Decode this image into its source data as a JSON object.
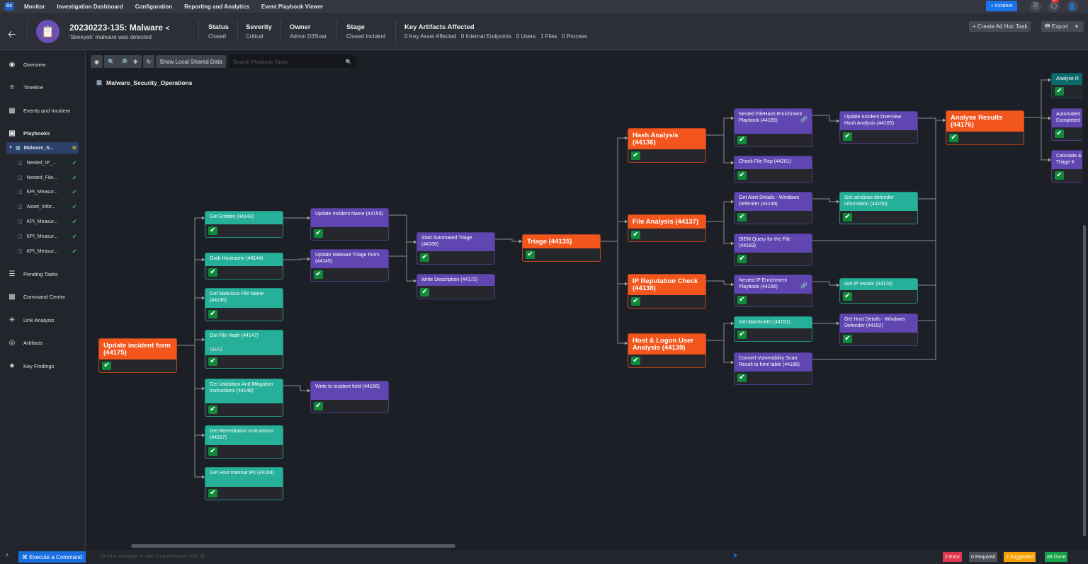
{
  "topnav": {
    "logo": "D3",
    "items": [
      "Monitor",
      "Investigation Dashboard",
      "Configuration",
      "Reporting and Analytics",
      "Event Playbook Viewer"
    ],
    "incident_button": "+ Incident",
    "notification_count": "27"
  },
  "header": {
    "title": "20230223-135: Malware",
    "subtitle": "'Skeeyah' malware was detected",
    "status": {
      "label": "Status",
      "value": "Closed"
    },
    "severity": {
      "label": "Severity",
      "value": "Critical"
    },
    "owner": {
      "label": "Owner",
      "value": "Admin D3Soar"
    },
    "stage": {
      "label": "Stage",
      "value": "Closed Incident"
    },
    "artifacts": {
      "label": "Key Artifacts Affected",
      "value": "0 Key Asset Affected   0 Internal Endpoints   0 Users   1 Files   0 Process"
    },
    "create_task": "+ Create Ad Hoc Task",
    "export": "Export"
  },
  "sidebar": {
    "items": [
      "Overview",
      "Timeline",
      "Events and Incident",
      "Playbooks",
      "Pending Tasks",
      "Command Centre",
      "Link Analysis",
      "Artifacts",
      "Key Findings"
    ],
    "playbooks": [
      "Malware_S...",
      "Nested_IP_...",
      "Nested_File...",
      "KPI_Measur...",
      "Asset_Infor...",
      "KPI_Measur...",
      "KPI_Measur...",
      "KPI_Measur..."
    ]
  },
  "toolbar": {
    "show_shared": "Show Local Shared Data",
    "search_placeholder": "Search Playbook Tasks"
  },
  "playbook_title": "Malware_Security_Operations",
  "nodes": [
    {
      "label": "Update incident form (44175)",
      "type": "orange"
    },
    {
      "label": "Get Entities (44143)",
      "type": "teal"
    },
    {
      "label": "Grab Hostname (44144)",
      "type": "teal"
    },
    {
      "label": "Get Malicious File Name (44146)",
      "type": "teal"
    },
    {
      "label": "Get File Hash (44147)",
      "type": "teal",
      "extra": "SHA1"
    },
    {
      "label": "Get Validation And Mitigation Instructions (44148)",
      "type": "teal"
    },
    {
      "label": "Get Remediation Instructions (44167)",
      "type": "teal"
    },
    {
      "label": "Get Host Internal IPs (44184)",
      "type": "teal"
    },
    {
      "label": "Update Incident Name (44153)",
      "type": "purple"
    },
    {
      "label": "Update Malware Triage Form (44145)",
      "type": "purple"
    },
    {
      "label": "Write to incident field (44166)",
      "type": "purple"
    },
    {
      "label": "Start Automated Triage (44168)",
      "type": "purple"
    },
    {
      "label": "Write Description (44172)",
      "type": "purple"
    },
    {
      "label": "Triage (44135)",
      "type": "orange"
    },
    {
      "label": "Hash Analysis (44136)",
      "type": "orange"
    },
    {
      "label": "File Analysis (44137)",
      "type": "orange"
    },
    {
      "label": "IP Reputation Check (44138)",
      "type": "orange"
    },
    {
      "label": "Host & Logon User Analysis (44139)",
      "type": "orange"
    },
    {
      "label": "Nested FileHash Enrichment Playbook (44155)",
      "type": "purple",
      "nested": true
    },
    {
      "label": "Check File Rep (44201)",
      "type": "purple"
    },
    {
      "label": "Get Alert Details - Windows Defender (44149)",
      "type": "purple"
    },
    {
      "label": "SIEM Query for the File (44183)",
      "type": "purple"
    },
    {
      "label": "Nested IP Enrichment Playbook (44156)",
      "type": "purple",
      "nested": true
    },
    {
      "label": "Get MachineID (44151)",
      "type": "teal"
    },
    {
      "label": "Convert Vulnerability Scan Result to html table (44186)",
      "type": "purple"
    },
    {
      "label": "Update Incident Overview Hash Analysis (44165)",
      "type": "purple"
    },
    {
      "label": "Get windows defender information (44150)",
      "type": "teal"
    },
    {
      "label": "Get IP results (44178)",
      "type": "teal"
    },
    {
      "label": "Get Host Details - Windows Defender (44152)",
      "type": "purple"
    },
    {
      "label": "Analyse Results (44176)",
      "type": "orange"
    },
    {
      "label": "Analyse R",
      "type": "darkteal"
    },
    {
      "label": "Automated Completed",
      "type": "purple"
    },
    {
      "label": "Calculate & Triage K",
      "type": "purple"
    }
  ],
  "footer": {
    "execute": "Execute a Command",
    "message_placeholder": "Send a message or start a conversation with @",
    "error": "2 Error",
    "required": "0 Required",
    "suggested": "2 Suggested",
    "done": "88 Done"
  },
  "colors": {
    "orange": "#f2561d",
    "teal": "#27b099",
    "purple": "#6046b0",
    "accent": "#1a73e8"
  }
}
